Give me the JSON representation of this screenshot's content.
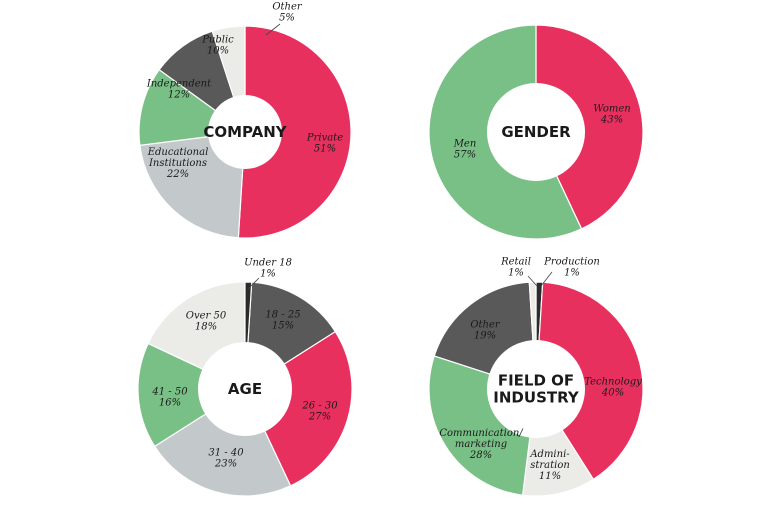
{
  "chart_data": [
    {
      "type": "pie",
      "title": "COMPANY",
      "slices": [
        {
          "label": "Private",
          "value": 51,
          "display": "51%",
          "color": "#e8305f"
        },
        {
          "label": "Educational\nInstitutions",
          "value": 22,
          "display": "22%",
          "color": "#c3c9cb"
        },
        {
          "label": "Independent",
          "value": 12,
          "display": "12%",
          "color": "#79c086"
        },
        {
          "label": "Public",
          "value": 10,
          "display": "10%",
          "color": "#5a5959"
        },
        {
          "label": "Other",
          "value": 5,
          "display": "5%",
          "color": "#ebebe7"
        }
      ]
    },
    {
      "type": "pie",
      "title": "GENDER",
      "slices": [
        {
          "label": "Women",
          "value": 43,
          "display": "43%",
          "color": "#e8305f"
        },
        {
          "label": "Men",
          "value": 57,
          "display": "57%",
          "color": "#79c086"
        }
      ]
    },
    {
      "type": "pie",
      "title": "AGE",
      "slices": [
        {
          "label": "18 - 25",
          "value": 15,
          "display": "15%",
          "color": "#5a5959"
        },
        {
          "label": "26 - 30",
          "value": 27,
          "display": "27%",
          "color": "#e8305f"
        },
        {
          "label": "31 - 40",
          "value": 23,
          "display": "23%",
          "color": "#c3c9cb"
        },
        {
          "label": "41 - 50",
          "value": 16,
          "display": "16%",
          "color": "#79c086"
        },
        {
          "label": "Over 50",
          "value": 18,
          "display": "18%",
          "color": "#ebebe7"
        },
        {
          "label": "Under 18",
          "value": 1,
          "display": "1%",
          "color": "#2b2b2b"
        }
      ]
    },
    {
      "type": "pie",
      "title": "FIELD OF\nINDUSTRY",
      "slices": [
        {
          "label": "Production",
          "value": 1,
          "display": "1%",
          "color": "#2b2b2b"
        },
        {
          "label": "Technology",
          "value": 40,
          "display": "40%",
          "color": "#e8305f"
        },
        {
          "label": "Admini-\nstration",
          "value": 11,
          "display": "11%",
          "color": "#ebebe7"
        },
        {
          "label": "Communication/\nmarketing",
          "value": 28,
          "display": "28%",
          "color": "#79c086"
        },
        {
          "label": "Other",
          "value": 19,
          "display": "19%",
          "color": "#5a5959"
        },
        {
          "label": "Retail",
          "value": 1,
          "display": "1%",
          "color": "#ebebe7"
        }
      ]
    }
  ]
}
